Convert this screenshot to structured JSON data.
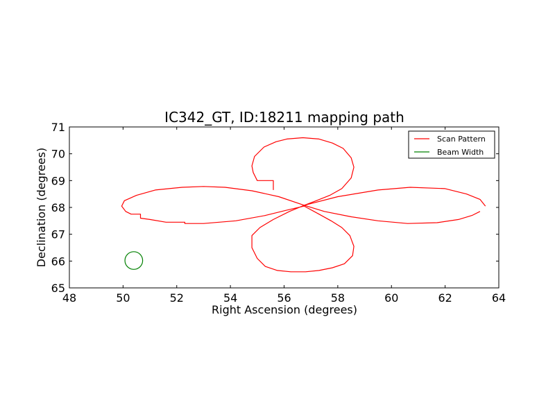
{
  "chart_data": {
    "type": "line",
    "title": "IC342_GT, ID:18211 mapping path",
    "xlabel": "Right Ascension (degrees)",
    "ylabel": "Declination (degrees)",
    "xlim": [
      48,
      64
    ],
    "ylim": [
      65,
      71
    ],
    "xticks": [
      "48",
      "50",
      "52",
      "54",
      "56",
      "58",
      "60",
      "62",
      "64"
    ],
    "yticks": [
      "65",
      "66",
      "67",
      "68",
      "69",
      "70",
      "71"
    ],
    "grid": false,
    "legend_position": "top-right",
    "colors": {
      "scan": "#ff0000",
      "beam": "#008000",
      "axes": "#000000",
      "background": "#ffffff"
    },
    "series": [
      {
        "name": "Scan Pattern",
        "color": "#ff0000",
        "points": [
          [
            55.6,
            68.65
          ],
          [
            55.6,
            69.0
          ],
          [
            55.0,
            69.0
          ],
          [
            54.85,
            69.3
          ],
          [
            54.8,
            69.55
          ],
          [
            54.9,
            69.9
          ],
          [
            55.25,
            70.25
          ],
          [
            55.7,
            70.45
          ],
          [
            56.1,
            70.55
          ],
          [
            56.7,
            70.6
          ],
          [
            57.3,
            70.55
          ],
          [
            57.8,
            70.4
          ],
          [
            58.2,
            70.2
          ],
          [
            58.5,
            69.85
          ],
          [
            58.6,
            69.5
          ],
          [
            58.5,
            69.1
          ],
          [
            58.15,
            68.7
          ],
          [
            57.7,
            68.45
          ],
          [
            57.2,
            68.25
          ],
          [
            56.75,
            68.08
          ],
          [
            56.2,
            67.85
          ],
          [
            55.6,
            67.55
          ],
          [
            55.1,
            67.25
          ],
          [
            54.8,
            66.95
          ],
          [
            54.8,
            66.5
          ],
          [
            55.0,
            66.1
          ],
          [
            55.3,
            65.8
          ],
          [
            55.75,
            65.65
          ],
          [
            56.25,
            65.6
          ],
          [
            56.8,
            65.6
          ],
          [
            57.3,
            65.65
          ],
          [
            57.8,
            65.75
          ],
          [
            58.25,
            65.9
          ],
          [
            58.55,
            66.2
          ],
          [
            58.6,
            66.55
          ],
          [
            58.45,
            66.95
          ],
          [
            58.15,
            67.25
          ],
          [
            57.75,
            67.5
          ],
          [
            57.3,
            67.75
          ],
          [
            56.75,
            68.05
          ],
          [
            56.1,
            67.9
          ],
          [
            55.3,
            67.7
          ],
          [
            54.2,
            67.5
          ],
          [
            53.0,
            67.4
          ],
          [
            52.3,
            67.4
          ],
          [
            52.3,
            67.45
          ],
          [
            51.6,
            67.45
          ],
          [
            51.0,
            67.55
          ],
          [
            50.65,
            67.6
          ],
          [
            50.65,
            67.75
          ],
          [
            50.3,
            67.75
          ],
          [
            50.1,
            67.85
          ],
          [
            49.95,
            68.05
          ],
          [
            50.05,
            68.25
          ],
          [
            50.5,
            68.45
          ],
          [
            51.2,
            68.65
          ],
          [
            52.2,
            68.75
          ],
          [
            53.0,
            68.78
          ],
          [
            53.8,
            68.75
          ],
          [
            54.8,
            68.62
          ],
          [
            55.8,
            68.4
          ],
          [
            56.75,
            68.08
          ],
          [
            57.5,
            67.85
          ],
          [
            58.5,
            67.65
          ],
          [
            59.5,
            67.5
          ],
          [
            60.6,
            67.4
          ],
          [
            61.7,
            67.43
          ],
          [
            62.5,
            67.55
          ],
          [
            63.0,
            67.7
          ],
          [
            63.3,
            67.85
          ]
        ]
      },
      {
        "name": "Beam Width",
        "color": "#008000",
        "shape": "circle",
        "center": [
          50.4,
          66.02
        ],
        "radius_deg": 0.33
      }
    ],
    "extra_segment": [
      [
        56.75,
        68.08
      ],
      [
        58.0,
        68.4
      ],
      [
        59.5,
        68.65
      ],
      [
        60.7,
        68.75
      ],
      [
        62.0,
        68.7
      ],
      [
        62.8,
        68.5
      ],
      [
        63.3,
        68.3
      ],
      [
        63.5,
        68.05
      ]
    ]
  }
}
